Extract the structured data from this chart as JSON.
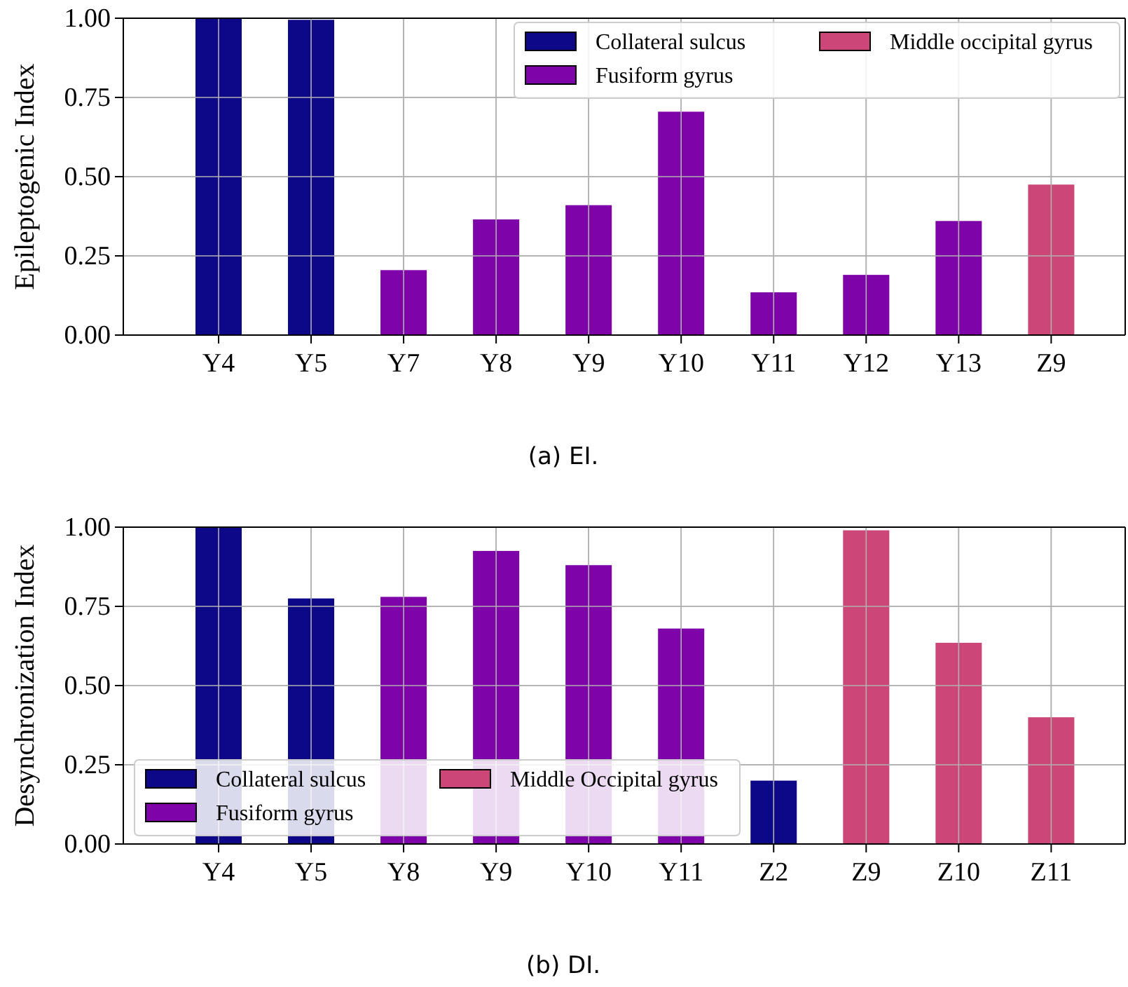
{
  "chart_data": [
    {
      "type": "bar",
      "ylabel": "Epileptogenic Index",
      "categories": [
        "Y4",
        "Y5",
        "Y7",
        "Y8",
        "Y9",
        "Y10",
        "Y11",
        "Y12",
        "Y13",
        "Z9"
      ],
      "series": [
        {
          "name": "Collateral sulcus",
          "color": "#0d0887",
          "values": [
            1.0,
            0.995,
            null,
            null,
            null,
            null,
            null,
            null,
            null,
            null
          ]
        },
        {
          "name": "Fusiform gyrus",
          "color": "#7e03a8",
          "values": [
            null,
            null,
            0.205,
            0.365,
            0.41,
            0.705,
            0.135,
            0.19,
            0.36,
            null
          ]
        },
        {
          "name": "Middle occipital gyrus",
          "color": "#cc4778",
          "values": [
            null,
            null,
            null,
            null,
            null,
            null,
            null,
            null,
            null,
            0.475
          ]
        }
      ],
      "ylim": [
        0,
        1
      ],
      "yticks": [
        {
          "value": 0,
          "label": "0.00"
        },
        {
          "value": 0.25,
          "label": "0.25"
        },
        {
          "value": 0.5,
          "label": "0.50"
        },
        {
          "value": 0.75,
          "label": "0.75"
        },
        {
          "value": 1,
          "label": "1.00"
        }
      ],
      "grid": true,
      "legend": "top right",
      "annotations": [
        "(a) EI."
      ]
    },
    {
      "type": "bar",
      "ylabel": "Desynchronization Index",
      "categories": [
        "Y4",
        "Y5",
        "Y8",
        "Y9",
        "Y10",
        "Y11",
        "Z2",
        "Z9",
        "Z10",
        "Z11"
      ],
      "series": [
        {
          "name": "Collateral sulcus",
          "color": "#0d0887",
          "values": [
            1.0,
            0.775,
            null,
            null,
            null,
            null,
            0.2,
            null,
            null,
            null
          ]
        },
        {
          "name": "Fusiform gyrus",
          "color": "#7e03a8",
          "values": [
            null,
            null,
            0.78,
            0.925,
            0.88,
            0.68,
            null,
            null,
            null,
            null
          ]
        },
        {
          "name": "Middle Occipital gyrus",
          "color": "#cc4778",
          "values": [
            null,
            null,
            null,
            null,
            null,
            null,
            null,
            0.99,
            0.635,
            0.4
          ]
        }
      ],
      "ylim": [
        0,
        1
      ],
      "yticks": [
        {
          "value": 0,
          "label": "0.00"
        },
        {
          "value": 0.25,
          "label": "0.25"
        },
        {
          "value": 0.5,
          "label": "0.50"
        },
        {
          "value": 0.75,
          "label": "0.75"
        },
        {
          "value": 1,
          "label": "1.00"
        }
      ],
      "grid": true,
      "legend": "bottom left",
      "annotations": [
        "(b) DI."
      ]
    }
  ]
}
